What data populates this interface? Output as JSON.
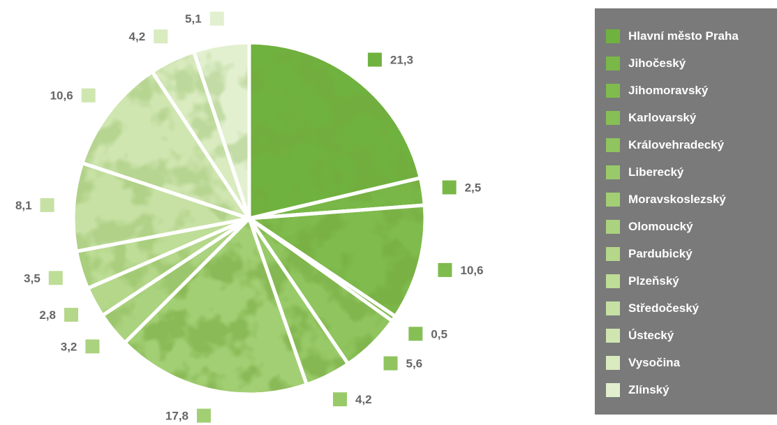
{
  "chart_data": {
    "type": "pie",
    "categories": [
      "Hlavní město Praha",
      "Jihočeský",
      "Jihomoravský",
      "Karlovarský",
      "Královehradecký",
      "Liberecký",
      "Moravskoslezský",
      "Olomoucký",
      "Pardubický",
      "Plzeňský",
      "Středočeský",
      "Ústecký",
      "Vysočina",
      "Zlínský"
    ],
    "values": [
      21.3,
      2.5,
      10.6,
      0.5,
      5.6,
      4.2,
      17.8,
      3.2,
      2.8,
      3.5,
      8.1,
      10.6,
      4.2,
      5.1
    ],
    "value_labels": [
      "21,3",
      "2,5",
      "10,6",
      "0,5",
      "5,6",
      "4,2",
      "17,8",
      "3,2",
      "2,8",
      "3,5",
      "8,1",
      "10,6",
      "4,2",
      "5,1"
    ],
    "colors": [
      "#6fb23f",
      "#79b848",
      "#7fbb4d",
      "#86bf55",
      "#8fc45e",
      "#99ca69",
      "#a3cf74",
      "#abd27f",
      "#b4d78a",
      "#bedd97",
      "#c7e1a4",
      "#d0e6b1",
      "#d9ebbf",
      "#e2f0cf"
    ],
    "legend_position": "right",
    "legend_title": ""
  }
}
